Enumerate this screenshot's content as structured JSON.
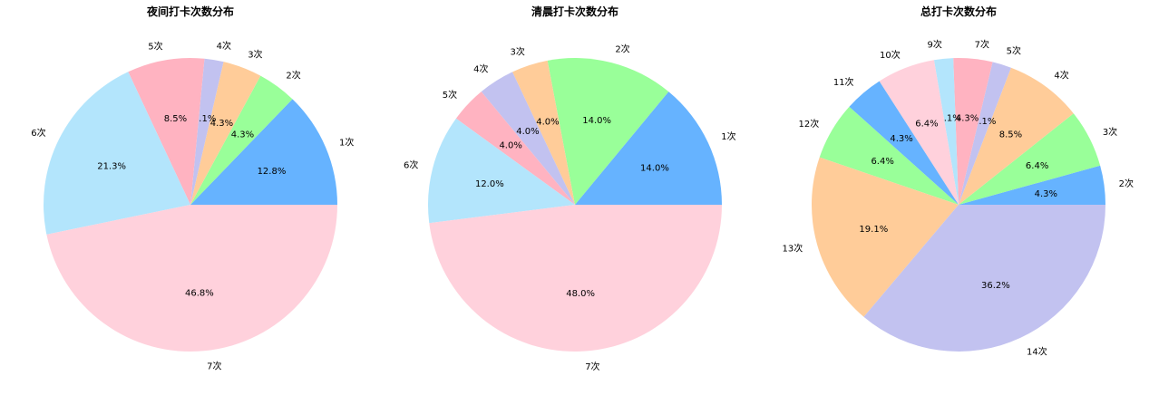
{
  "chart_data": [
    {
      "type": "pie",
      "title": "夜间打卡次数分布",
      "labels": [
        "1次",
        "2次",
        "3次",
        "4次",
        "5次",
        "6次",
        "7次"
      ],
      "values": [
        12.8,
        4.3,
        4.3,
        2.1,
        8.5,
        21.3,
        46.8
      ],
      "pct_labels": [
        "12.8%",
        "4.3%",
        "4.3%",
        "2.1%",
        "8.5%",
        "21.3%",
        "46.8%"
      ]
    },
    {
      "type": "pie",
      "title": "清晨打卡次数分布",
      "labels": [
        "1次",
        "2次",
        "3次",
        "4次",
        "5次",
        "6次",
        "7次"
      ],
      "values": [
        14.0,
        14.0,
        4.0,
        4.0,
        4.0,
        12.0,
        48.0
      ],
      "pct_labels": [
        "14.0%",
        "14.0%",
        "4.0%",
        "4.0%",
        "4.0%",
        "12.0%",
        "48.0%"
      ]
    },
    {
      "type": "pie",
      "title": "总打卡次数分布",
      "labels": [
        "2次",
        "3次",
        "4次",
        "5次",
        "7次",
        "9次",
        "10次",
        "11次",
        "12次",
        "13次",
        "14次"
      ],
      "values": [
        4.3,
        6.4,
        8.5,
        2.1,
        4.3,
        2.1,
        6.4,
        4.3,
        6.4,
        19.1,
        36.2
      ],
      "pct_labels": [
        "4.3%",
        "6.4%",
        "8.5%",
        "2.1%",
        "4.3%",
        "2.1%",
        "6.4%",
        "4.3%",
        "6.4%",
        "19.1%",
        "36.2%"
      ]
    }
  ],
  "colors": [
    "#66b3ff",
    "#99ff99",
    "#ffcc99",
    "#c2c2f0",
    "#ffb3c1",
    "#b3e5fc",
    "#ffd1dc"
  ]
}
